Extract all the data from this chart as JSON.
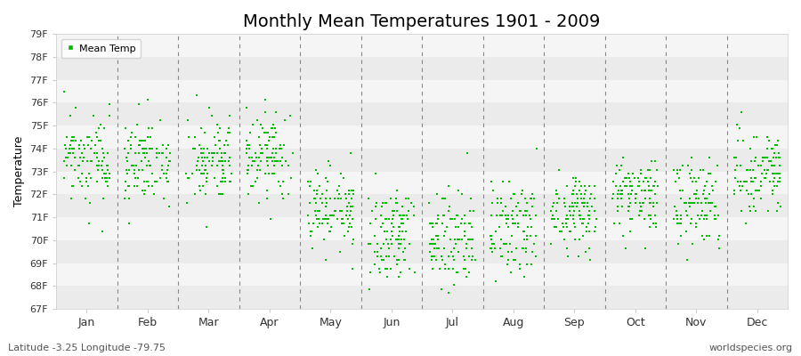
{
  "title": "Monthly Mean Temperatures 1901 - 2009",
  "ylabel": "Temperature",
  "xlabel_bottom_left": "Latitude -3.25 Longitude -79.75",
  "xlabel_bottom_right": "worldspecies.org",
  "months": [
    "Jan",
    "Feb",
    "Mar",
    "Apr",
    "May",
    "Jun",
    "Jul",
    "Aug",
    "Sep",
    "Oct",
    "Nov",
    "Dec"
  ],
  "ytick_labels": [
    "67F",
    "68F",
    "69F",
    "70F",
    "71F",
    "72F",
    "73F",
    "74F",
    "75F",
    "76F",
    "77F",
    "78F",
    "79F"
  ],
  "ytick_values": [
    67,
    68,
    69,
    70,
    71,
    72,
    73,
    74,
    75,
    76,
    77,
    78,
    79
  ],
  "ylim": [
    67,
    79
  ],
  "point_color": "#00BB00",
  "point_marker": "s",
  "point_size": 4,
  "legend_label": "Mean Temp",
  "bg_color": "#FFFFFF",
  "stripe_color_dark": "#EBEBEB",
  "stripe_color_light": "#F5F5F5",
  "title_fontsize": 14,
  "monthly_means": [
    73.4,
    73.4,
    73.4,
    73.6,
    71.4,
    70.2,
    70.0,
    70.4,
    71.2,
    72.0,
    71.6,
    73.0
  ],
  "monthly_stds": [
    0.9,
    0.9,
    0.9,
    0.9,
    0.9,
    1.0,
    1.0,
    1.0,
    0.8,
    0.9,
    0.9,
    0.9
  ],
  "n_years": 109,
  "seed": 17,
  "quantize": 0.18
}
